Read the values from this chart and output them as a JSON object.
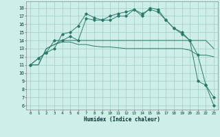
{
  "title": "",
  "xlabel": "Humidex (Indice chaleur)",
  "ylabel": "",
  "xlim": [
    -0.5,
    23.5
  ],
  "ylim": [
    5.5,
    18.8
  ],
  "yticks": [
    6,
    7,
    8,
    9,
    10,
    11,
    12,
    13,
    14,
    15,
    16,
    17,
    18
  ],
  "xticks": [
    0,
    1,
    2,
    3,
    4,
    5,
    6,
    7,
    8,
    9,
    10,
    11,
    12,
    13,
    14,
    15,
    16,
    17,
    18,
    19,
    20,
    21,
    22,
    23
  ],
  "bg_color": "#ceeee8",
  "grid_color": "#a0ccc4",
  "line_color": "#2a7a6a",
  "series": [
    [
      11,
      11.8,
      12.5,
      13.0,
      14.8,
      15.0,
      15.8,
      17.3,
      16.8,
      16.5,
      17.0,
      17.3,
      17.5,
      17.8,
      17.0,
      18.0,
      17.8,
      16.5,
      15.5,
      15.0,
      14.0,
      12.2,
      8.5,
      6.0
    ],
    [
      11,
      11.8,
      12.5,
      14.0,
      14.0,
      14.5,
      14.0,
      16.7,
      16.5,
      16.5,
      16.5,
      17.0,
      17.0,
      17.8,
      17.3,
      17.8,
      17.5,
      16.5,
      15.5,
      14.8,
      14.0,
      9.0,
      8.5,
      7.0
    ],
    [
      11,
      11.0,
      13.0,
      13.5,
      13.8,
      13.8,
      13.5,
      13.5,
      13.3,
      13.2,
      13.2,
      13.1,
      13.0,
      13.0,
      13.0,
      13.0,
      13.0,
      13.0,
      13.0,
      13.0,
      12.8,
      12.2,
      12.2,
      12.0
    ],
    [
      11,
      11.0,
      13.0,
      13.5,
      14.0,
      14.0,
      14.0,
      14.0,
      14.0,
      14.0,
      14.0,
      14.0,
      14.0,
      14.0,
      14.0,
      14.0,
      14.0,
      14.0,
      14.0,
      14.0,
      14.0,
      14.0,
      14.0,
      13.0
    ]
  ],
  "has_markers": [
    true,
    true,
    false,
    false
  ],
  "marker_style": "D"
}
